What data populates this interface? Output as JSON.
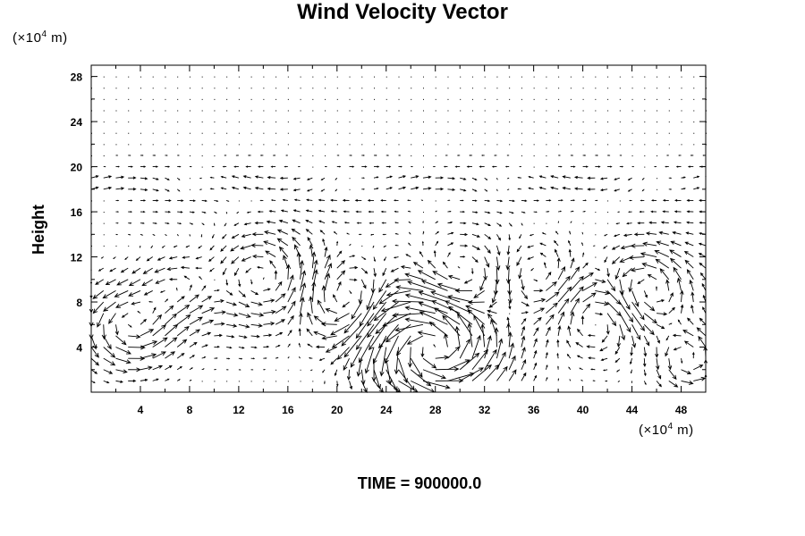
{
  "chart_data": {
    "type": "vector-field",
    "title": "Wind Velocity Vector",
    "ylabel": "Height",
    "y_unit_prefix": "(×10",
    "y_unit_exp": "4",
    "y_unit_suffix": " m)",
    "x_unit_prefix": "(×10",
    "x_unit_exp": "4",
    "x_unit_suffix": " m)",
    "xlim": [
      0,
      50
    ],
    "ylim": [
      0,
      29
    ],
    "x_major_ticks": [
      4,
      8,
      12,
      16,
      20,
      24,
      28,
      32,
      36,
      40,
      44,
      48
    ],
    "y_major_ticks": [
      4,
      8,
      12,
      16,
      20,
      24,
      28
    ],
    "grid": false,
    "footer_label": "TIME",
    "footer_value": "900000.0",
    "arrow_color": "#000000"
  }
}
